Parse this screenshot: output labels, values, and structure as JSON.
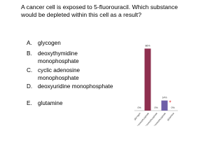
{
  "question": "A cancer cell is exposed to 5-fluorouracil.  Which substance would be depleted within this cell as a result?",
  "options": [
    {
      "letter": "A.",
      "text": "glycogen"
    },
    {
      "letter": "B.",
      "text": "deoxythymidine monophosphate"
    },
    {
      "letter": "C.",
      "text": "cyclic adenosine monophosphate"
    },
    {
      "letter": "D.",
      "text": "deoxyuridine monophosphate"
    },
    {
      "letter": "E.",
      "text": "glutamine"
    }
  ],
  "chart_data": {
    "type": "bar",
    "categories": [
      "glycogen",
      "deoxythymidine monophosphate",
      "cyclic adenosine monophosphate",
      "deoxyuridine monophosphate",
      "glutamine"
    ],
    "values": [
      0,
      86,
      0,
      14,
      0
    ],
    "value_labels": [
      "0%",
      "86%",
      "0%",
      "14%",
      "0%"
    ],
    "colors": [
      "#3e5f9e",
      "#8e2f4f",
      "#6f8a3a",
      "#6e5fa8",
      "#3a8fb0"
    ],
    "ylim": [
      0,
      100
    ],
    "marker": "*"
  }
}
